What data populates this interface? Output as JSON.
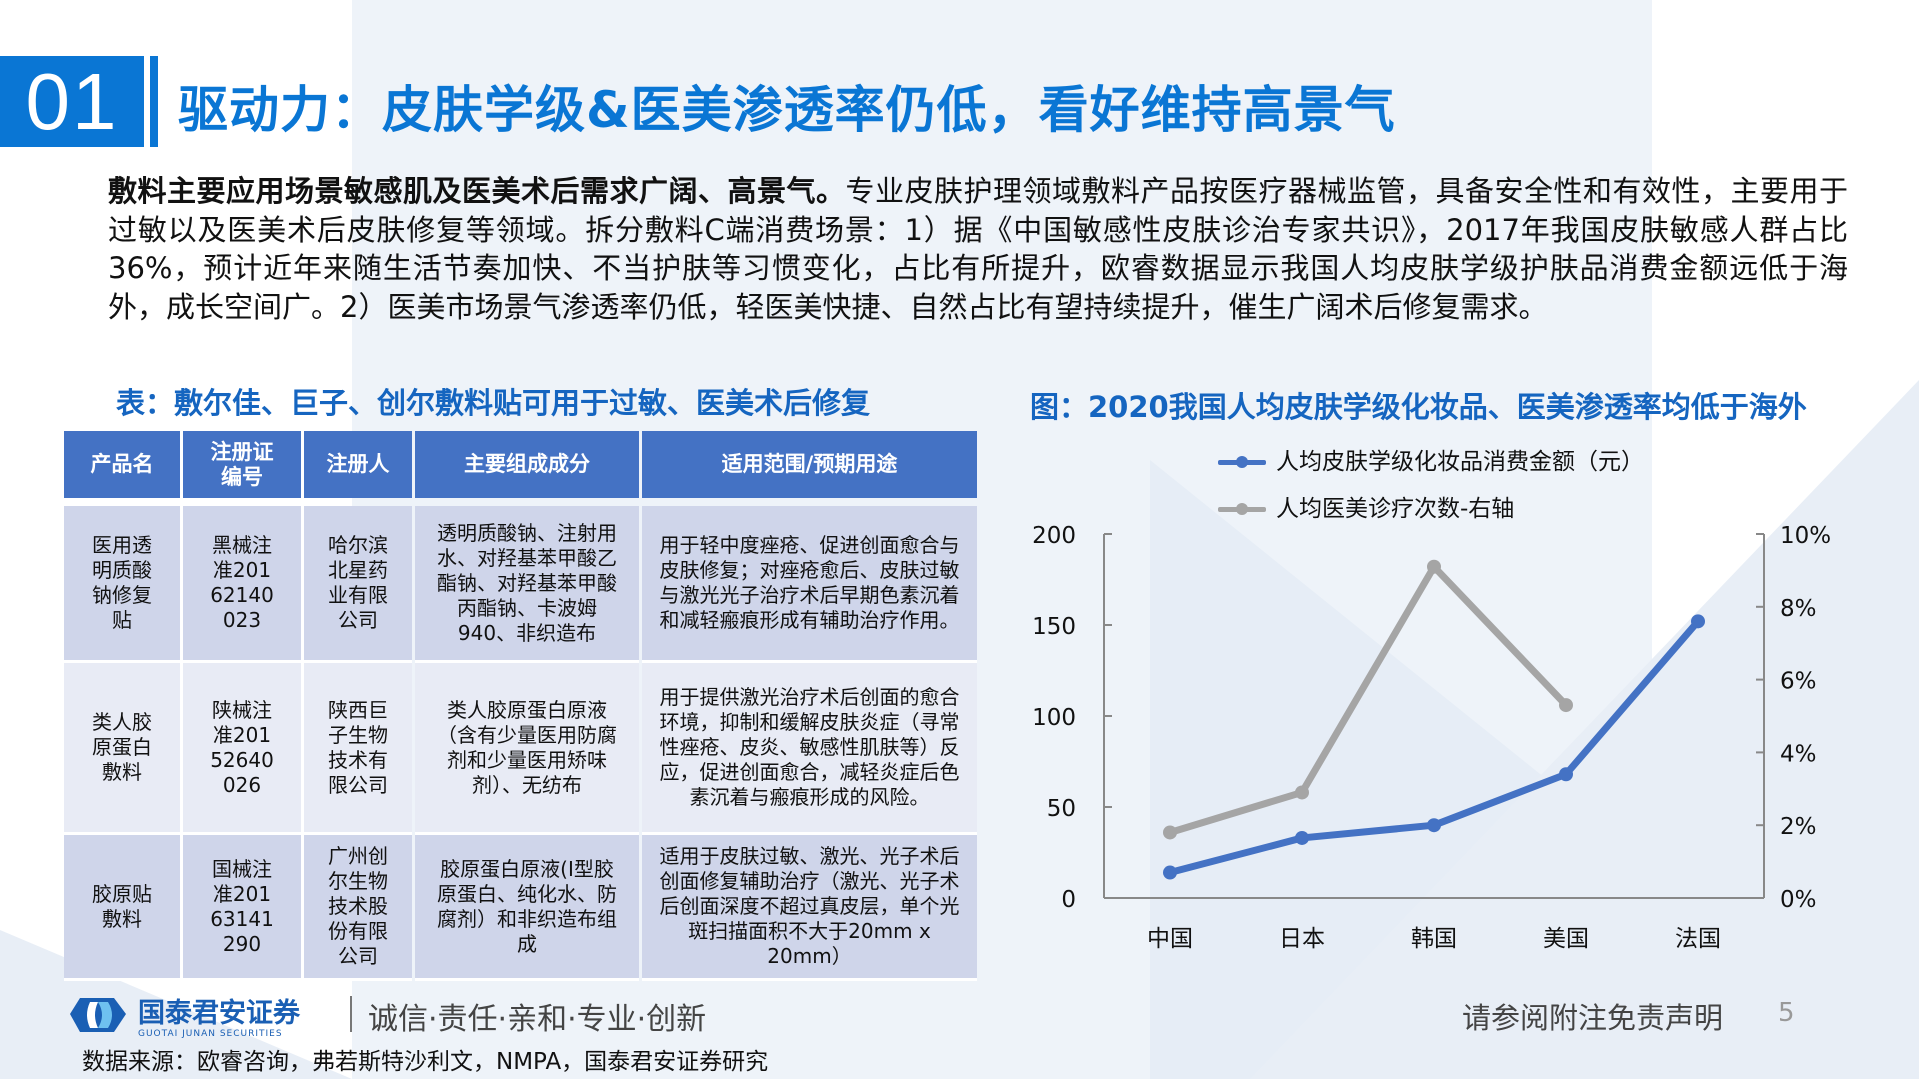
{
  "header": {
    "section_number": "01",
    "title": "驱动力：皮肤学级&医美渗透率仍低，看好维持高景气"
  },
  "body": {
    "lead_bold": "敷料主要应用场景敏感肌及医美术后需求广阔、高景气。",
    "text": "专业皮肤护理领域敷料产品按医疗器械监管，具备安全性和有效性，主要用于过敏以及医美术后皮肤修复等领域。拆分敷料C端消费场景：1）据《中国敏感性皮肤诊治专家共识》，2017年我国皮肤敏感人群占比36%，预计近年来随生活节奏加快、不当护肤等习惯变化，占比有所提升，欧睿数据显示我国人均皮肤学级护肤品消费金额远低于海外，成长空间广。2）医美市场景气渗透率仍低，轻医美快捷、自然占比有望持续提升，催生广阔术后修复需求。"
  },
  "table": {
    "caption": "表：敷尔佳、巨子、创尔敷料贴可用于过敏、医美术后修复",
    "headers": [
      "产品名",
      "注册证编号",
      "注册人",
      "主要组成成分",
      "适用范围/预期用途"
    ],
    "rows": [
      {
        "product": "医用透明质酸钠修复贴",
        "reg_no": "黑械注准20162140023",
        "registrant": "哈尔滨北星药业有限公司",
        "ingredients": "透明质酸钠、注射用水、对羟基苯甲酸乙酯钠、对羟基苯甲酸丙酯钠、卡波姆940、非织造布",
        "usage": "用于轻中度痤疮、促进创面愈合与皮肤修复；对痤疮愈后、皮肤过敏与激光光子治疗术后早期色素沉着和减轻瘢痕形成有辅助治疗作用。"
      },
      {
        "product": "类人胶原蛋白敷料",
        "reg_no": "陕械注准20152640026",
        "registrant": "陕西巨子生物技术有限公司",
        "ingredients": "类人胶原蛋白原液（含有少量医用防腐剂和少量医用矫味剂）、无纺布",
        "usage": "用于提供激光治疗术后创面的愈合环境，抑制和缓解皮肤炎症（寻常性痤疮、皮炎、敏感性肌肤等）反应，促进创面愈合，减轻炎症后色素沉着与瘢痕形成的风险。"
      },
      {
        "product": "胶原贴敷料",
        "reg_no": "国械注准20163141290",
        "registrant": "广州创尔生物技术股份有限公司",
        "ingredients": "胶原蛋白原液(I型胶原蛋白、纯化水、防腐剂）和非织造布组成",
        "usage": "适用于皮肤过敏、激光、光子术后创面修复辅助治疗（激光、光子术后创面深度不超过真皮层，单个光斑扫描面积不大于20mm x 20mm）"
      }
    ]
  },
  "chart_caption": "图：2020我国人均皮肤学级化妆品、医美渗透率均低于海外",
  "chart_data": {
    "type": "line",
    "title": "2020我国人均皮肤学级化妆品、医美渗透率均低于海外",
    "categories": [
      "中国",
      "日本",
      "韩国",
      "美国",
      "法国"
    ],
    "series": [
      {
        "name": "人均皮肤学级化妆品消费金额（元）",
        "axis": "left",
        "color": "#4472C4",
        "values": [
          14,
          33,
          40,
          68,
          152
        ]
      },
      {
        "name": "人均医美诊疗次数-右轴",
        "axis": "right",
        "color": "#A5A5A5",
        "values": [
          1.8,
          2.9,
          9.1,
          5.3,
          null
        ]
      }
    ],
    "left_axis": {
      "ylim": [
        0,
        200
      ],
      "ticks": [
        "0",
        "50",
        "100",
        "150",
        "200"
      ]
    },
    "right_axis": {
      "ylim": [
        0,
        10
      ],
      "unit": "%",
      "ticks": [
        "0%",
        "2%",
        "4%",
        "6%",
        "8%",
        "10%"
      ]
    },
    "legend_position": "top",
    "grid": false
  },
  "footer": {
    "company_cn": "国泰君安证券",
    "company_en": "GUOTAI JUNAN SECURITIES",
    "slogan": "诚信·责任·亲和·专业·创新",
    "source": "数据来源：欧睿咨询，弗若斯特沙利文，NMPA，国泰君安证券研究",
    "disclaimer": "请参阅附注免责声明",
    "page_number": "5"
  },
  "colors": {
    "brand_blue": "#0A76D4",
    "table_header": "#4472C4",
    "table_row_dark": "#CFD5EA",
    "table_row_light": "#E8EBF5",
    "series_blue": "#4472C4",
    "series_gray": "#A5A5A5"
  }
}
